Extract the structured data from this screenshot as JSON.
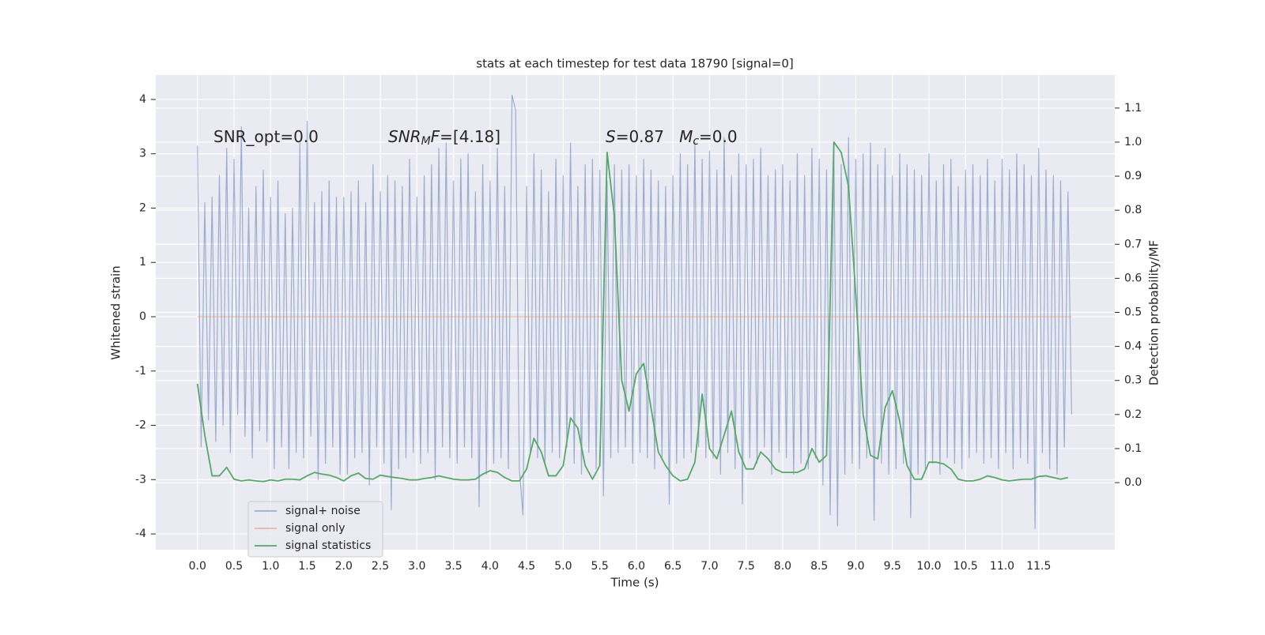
{
  "chart_data": {
    "type": "line",
    "title": "stats at each timestep for test data 18790 [signal=0]",
    "xlabel": "Time (s)",
    "ylabel": "Whitened strain",
    "y2label": "Detection probability/MF",
    "xlim": [
      -0.57,
      12.54
    ],
    "ylim": [
      -4.29,
      4.45
    ],
    "y2lim": [
      -0.197,
      1.197
    ],
    "xticks": [
      {
        "value": 0,
        "label": "0.0"
      },
      {
        "value": 0.5,
        "label": "0.5"
      },
      {
        "value": 1,
        "label": "1.0"
      },
      {
        "value": 1.5,
        "label": "1.5"
      },
      {
        "value": 2,
        "label": "2.0"
      },
      {
        "value": 2.5,
        "label": "2.5"
      },
      {
        "value": 3,
        "label": "3.0"
      },
      {
        "value": 3.5,
        "label": "3.5"
      },
      {
        "value": 4,
        "label": "4.0"
      },
      {
        "value": 4.5,
        "label": "4.5"
      },
      {
        "value": 5,
        "label": "5.0"
      },
      {
        "value": 5.5,
        "label": "5.5"
      },
      {
        "value": 6,
        "label": "6.0"
      },
      {
        "value": 6.5,
        "label": "6.5"
      },
      {
        "value": 7,
        "label": "7.0"
      },
      {
        "value": 7.5,
        "label": "7.5"
      },
      {
        "value": 8,
        "label": "8.0"
      },
      {
        "value": 8.5,
        "label": "8.5"
      },
      {
        "value": 9,
        "label": "9.0"
      },
      {
        "value": 9.5,
        "label": "9.5"
      },
      {
        "value": 10,
        "label": "10.0"
      },
      {
        "value": 10.5,
        "label": "10.5"
      },
      {
        "value": 11,
        "label": "11.0"
      },
      {
        "value": 11.5,
        "label": "11.5"
      }
    ],
    "yticks": [
      -4,
      -3,
      -2,
      -1,
      0,
      1,
      2,
      3,
      4
    ],
    "y2ticks": [
      {
        "value": 0,
        "label": "0.0"
      },
      {
        "value": 0.1,
        "label": "0.1"
      },
      {
        "value": 0.2,
        "label": "0.2"
      },
      {
        "value": 0.3,
        "label": "0.3"
      },
      {
        "value": 0.4,
        "label": "0.4"
      },
      {
        "value": 0.5,
        "label": "0.5"
      },
      {
        "value": 0.6,
        "label": "0.6"
      },
      {
        "value": 0.7,
        "label": "0.7"
      },
      {
        "value": 0.8,
        "label": "0.8"
      },
      {
        "value": 0.9,
        "label": "0.9"
      },
      {
        "value": 1.0,
        "label": "1.0"
      },
      {
        "value": 1.1,
        "label": "1.1"
      }
    ],
    "grid": true,
    "legend": "lower left",
    "annotations": [
      {
        "segments": [
          {
            "text": "SNR_opt=0.0"
          }
        ]
      },
      {
        "segments": [
          {
            "text": "SNR",
            "italic": true
          },
          {
            "text": "M",
            "italic": true,
            "sub": true
          },
          {
            "text": "F",
            "italic": true
          },
          {
            "text": "=[4.18]"
          }
        ]
      },
      {
        "segments": [
          {
            "text": "S",
            "italic": true
          },
          {
            "text": "=0.87   "
          },
          {
            "text": "M",
            "italic": true
          },
          {
            "text": "c",
            "italic": true,
            "sub": true
          },
          {
            "text": "=0.0"
          }
        ]
      }
    ],
    "series": [
      {
        "name": "signal+ noise",
        "color": "#4c72b0",
        "alpha": 0.5,
        "x": [
          0,
          0.05,
          0.1,
          0.15,
          0.2,
          0.25,
          0.3,
          0.35,
          0.4,
          0.45,
          0.5,
          0.55,
          0.6,
          0.65,
          0.7,
          0.75,
          0.8,
          0.85,
          0.9,
          0.95,
          1,
          1.05,
          1.1,
          1.15,
          1.2,
          1.25,
          1.3,
          1.35,
          1.4,
          1.45,
          1.5,
          1.55,
          1.6,
          1.65,
          1.7,
          1.75,
          1.8,
          1.85,
          1.9,
          1.95,
          2,
          2.05,
          2.1,
          2.15,
          2.2,
          2.25,
          2.3,
          2.35,
          2.4,
          2.45,
          2.5,
          2.55,
          2.6,
          2.65,
          2.7,
          2.75,
          2.8,
          2.85,
          2.9,
          2.95,
          3,
          3.05,
          3.1,
          3.15,
          3.2,
          3.25,
          3.3,
          3.35,
          3.4,
          3.45,
          3.5,
          3.55,
          3.6,
          3.65,
          3.7,
          3.75,
          3.8,
          3.85,
          3.9,
          3.95,
          4,
          4.05,
          4.1,
          4.15,
          4.2,
          4.25,
          4.3,
          4.35,
          4.4,
          4.45,
          4.5,
          4.55,
          4.6,
          4.65,
          4.7,
          4.75,
          4.8,
          4.85,
          4.9,
          4.95,
          5,
          5.05,
          5.1,
          5.15,
          5.2,
          5.25,
          5.3,
          5.35,
          5.4,
          5.45,
          5.5,
          5.55,
          5.6,
          5.65,
          5.7,
          5.75,
          5.8,
          5.85,
          5.9,
          5.95,
          6,
          6.05,
          6.1,
          6.15,
          6.2,
          6.25,
          6.3,
          6.35,
          6.4,
          6.45,
          6.5,
          6.55,
          6.6,
          6.65,
          6.7,
          6.75,
          6.8,
          6.85,
          6.9,
          6.95,
          7,
          7.05,
          7.1,
          7.15,
          7.2,
          7.25,
          7.3,
          7.35,
          7.4,
          7.45,
          7.5,
          7.55,
          7.6,
          7.65,
          7.7,
          7.75,
          7.8,
          7.85,
          7.9,
          7.95,
          8,
          8.05,
          8.1,
          8.15,
          8.2,
          8.25,
          8.3,
          8.35,
          8.4,
          8.45,
          8.5,
          8.55,
          8.6,
          8.65,
          8.7,
          8.75,
          8.8,
          8.85,
          8.9,
          8.95,
          9,
          9.05,
          9.1,
          9.15,
          9.2,
          9.25,
          9.3,
          9.35,
          9.4,
          9.45,
          9.5,
          9.55,
          9.6,
          9.65,
          9.7,
          9.75,
          9.8,
          9.85,
          9.9,
          9.95,
          10,
          10.05,
          10.1,
          10.15,
          10.2,
          10.25,
          10.3,
          10.35,
          10.4,
          10.45,
          10.5,
          10.55,
          10.6,
          10.65,
          10.7,
          10.75,
          10.8,
          10.85,
          10.9,
          10.95,
          11,
          11.05,
          11.1,
          11.15,
          11.2,
          11.25,
          11.3,
          11.35,
          11.4,
          11.45,
          11.5,
          11.55,
          11.6,
          11.65,
          11.7,
          11.75,
          11.8,
          11.85,
          11.9,
          11.95
        ],
        "values": [
          3.15,
          -2.4,
          2.1,
          -1.9,
          2.2,
          -2.3,
          2.6,
          -2.0,
          3.1,
          -2.5,
          2.9,
          -1.8,
          3.5,
          -2.2,
          2.0,
          -2.6,
          2.4,
          -2.1,
          2.7,
          -2.3,
          2.2,
          -2.8,
          2.5,
          -2.4,
          1.9,
          -2.8,
          2.0,
          -2.5,
          3.2,
          -2.6,
          3.6,
          -2.2,
          2.1,
          -3.0,
          2.3,
          -2.7,
          2.5,
          -2.4,
          2.2,
          -2.9,
          2.2,
          -2.9,
          2.3,
          -2.6,
          2.5,
          -2.5,
          2.1,
          -3.1,
          2.8,
          -2.4,
          2.3,
          -2.7,
          2.6,
          -3.55,
          2.5,
          -2.8,
          2.4,
          -2.6,
          2.9,
          -2.5,
          2.2,
          -2.7,
          2.6,
          -2.5,
          2.8,
          -3.0,
          3.1,
          -2.4,
          3.2,
          -2.6,
          2.5,
          -2.7,
          2.9,
          -2.4,
          3.0,
          -2.6,
          2.3,
          -3.5,
          2.8,
          -2.9,
          2.5,
          -2.7,
          3.1,
          -2.6,
          2.4,
          -2.8,
          4.08,
          3.8,
          -2.8,
          -3.65,
          2.4,
          -2.5,
          3.0,
          -2.6,
          2.7,
          -2.7,
          2.3,
          -2.5,
          2.9,
          -2.6,
          2.6,
          -2.4,
          3.2,
          -2.7,
          2.4,
          -2.9,
          2.8,
          -2.5,
          2.9,
          -2.8,
          2.7,
          -3.3,
          2.5,
          -2.6,
          2.8,
          -2.5,
          2.7,
          -2.4,
          2.8,
          -2.7,
          2.6,
          -2.5,
          2.9,
          -2.6,
          2.7,
          -2.8,
          2.5,
          -2.6,
          2.4,
          -3.45,
          2.6,
          -2.7,
          3.0,
          -2.6,
          2.8,
          -2.5,
          3.2,
          -2.4,
          2.9,
          -2.6,
          3.05,
          -2.6,
          2.7,
          -2.9,
          3.3,
          -2.5,
          2.6,
          -2.8,
          3.0,
          -3.45,
          2.8,
          -2.6,
          2.9,
          -2.7,
          3.1,
          -2.4,
          2.6,
          -2.9,
          2.7,
          -2.5,
          2.8,
          -2.6,
          2.5,
          -2.9,
          3.0,
          -2.7,
          2.6,
          -2.8,
          3.1,
          -2.6,
          2.9,
          -3.1,
          2.7,
          -3.65,
          3.1,
          -3.85,
          2.8,
          -2.9,
          3.3,
          -2.7,
          2.9,
          -2.8,
          3.0,
          -2.6,
          3.2,
          -3.75,
          2.8,
          -2.7,
          3.1,
          -2.9,
          2.6,
          -2.8,
          3.0,
          -2.7,
          2.8,
          -3.7,
          2.7,
          -2.9,
          2.6,
          -2.8,
          3.0,
          -2.7,
          2.5,
          -2.9,
          2.8,
          -2.6,
          2.9,
          -2.7,
          2.4,
          -2.8,
          2.7,
          -2.6,
          2.8,
          -2.5,
          2.6,
          -2.7,
          2.9,
          -2.6,
          2.5,
          -2.8,
          2.9,
          -2.5,
          2.7,
          -2.8,
          3.0,
          -2.6,
          2.8,
          -2.7,
          2.6,
          -3.9,
          3.1,
          -2.5,
          2.7,
          -2.8,
          2.6,
          -2.9,
          2.5,
          -2.4,
          2.3,
          -1.8
        ]
      },
      {
        "name": "signal only",
        "color": "#dd8452",
        "alpha": 0.5,
        "x": [
          0,
          11.95
        ],
        "values": [
          0,
          0
        ]
      },
      {
        "name": "signal statistics",
        "color": "#55a868",
        "axis": "y2",
        "x": [
          0,
          0.1,
          0.2,
          0.3,
          0.4,
          0.5,
          0.6,
          0.7,
          0.8,
          0.9,
          1,
          1.1,
          1.2,
          1.3,
          1.4,
          1.5,
          1.6,
          1.7,
          1.8,
          1.9,
          2,
          2.1,
          2.2,
          2.3,
          2.4,
          2.5,
          2.6,
          2.7,
          2.8,
          2.9,
          3,
          3.1,
          3.2,
          3.3,
          3.4,
          3.5,
          3.6,
          3.7,
          3.8,
          3.9,
          4,
          4.1,
          4.2,
          4.3,
          4.4,
          4.5,
          4.6,
          4.7,
          4.8,
          4.9,
          5,
          5.1,
          5.2,
          5.3,
          5.4,
          5.5,
          5.6,
          5.7,
          5.8,
          5.9,
          6,
          6.1,
          6.2,
          6.3,
          6.4,
          6.5,
          6.6,
          6.7,
          6.8,
          6.9,
          7,
          7.1,
          7.2,
          7.3,
          7.4,
          7.5,
          7.6,
          7.7,
          7.8,
          7.9,
          8,
          8.1,
          8.2,
          8.3,
          8.4,
          8.5,
          8.6,
          8.7,
          8.8,
          8.9,
          9,
          9.1,
          9.2,
          9.3,
          9.4,
          9.5,
          9.6,
          9.7,
          9.8,
          9.9,
          10,
          10.1,
          10.2,
          10.3,
          10.4,
          10.5,
          10.6,
          10.7,
          10.8,
          10.9,
          11,
          11.1,
          11.2,
          11.3,
          11.4,
          11.5,
          11.6,
          11.7,
          11.8,
          11.9
        ],
        "values": [
          0.29,
          0.14,
          0.02,
          0.02,
          0.045,
          0.01,
          0.005,
          0.008,
          0.005,
          0.003,
          0.008,
          0.005,
          0.01,
          0.01,
          0.008,
          0.02,
          0.03,
          0.025,
          0.022,
          0.015,
          0.005,
          0.02,
          0.028,
          0.012,
          0.01,
          0.022,
          0.018,
          0.015,
          0.012,
          0.008,
          0.008,
          0.012,
          0.015,
          0.02,
          0.015,
          0.01,
          0.008,
          0.008,
          0.01,
          0.025,
          0.035,
          0.03,
          0.015,
          0.005,
          0.005,
          0.04,
          0.13,
          0.09,
          0.02,
          0.02,
          0.05,
          0.19,
          0.16,
          0.05,
          0.01,
          0.05,
          0.97,
          0.78,
          0.3,
          0.21,
          0.32,
          0.35,
          0.22,
          0.09,
          0.05,
          0.02,
          0.005,
          0.01,
          0.06,
          0.26,
          0.1,
          0.07,
          0.14,
          0.21,
          0.09,
          0.04,
          0.04,
          0.09,
          0.07,
          0.04,
          0.03,
          0.03,
          0.03,
          0.04,
          0.1,
          0.06,
          0.08,
          1.0,
          0.97,
          0.87,
          0.55,
          0.2,
          0.08,
          0.07,
          0.22,
          0.27,
          0.18,
          0.05,
          0.01,
          0.01,
          0.06,
          0.06,
          0.055,
          0.04,
          0.01,
          0.005,
          0.005,
          0.01,
          0.02,
          0.015,
          0.008,
          0.005,
          0.008,
          0.01,
          0.01,
          0.018,
          0.02,
          0.015,
          0.01,
          0.015
        ]
      }
    ]
  }
}
